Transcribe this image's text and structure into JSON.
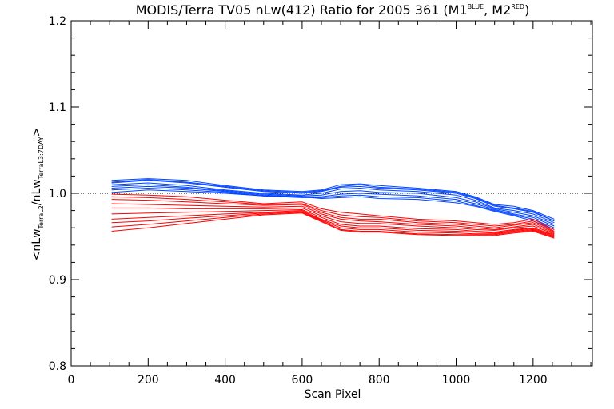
{
  "chart_data": {
    "type": "line",
    "title": {
      "main": "MODIS/Terra TV05 nLw(412) Ratio for 2005 361 (M1",
      "sup1": "BLUE",
      "mid": ", M2",
      "sup2": "RED",
      "end": ")"
    },
    "xlabel": "Scan Pixel",
    "ylabel": {
      "open": "<nLw",
      "sub1": "TerraL2",
      "slash": "/nLw",
      "sub2": "TerraL3:7DAY",
      "close": ">"
    },
    "xlim": [
      0,
      1354
    ],
    "ylim": [
      0.8,
      1.2
    ],
    "xticks": [
      0,
      200,
      400,
      600,
      800,
      1000,
      1200
    ],
    "yticks": [
      0.8,
      0.9,
      1.0,
      1.1,
      1.2
    ],
    "xtick_labels": [
      "0",
      "200",
      "400",
      "600",
      "800",
      "1000",
      "1200"
    ],
    "ytick_labels": [
      "0.8",
      "0.9",
      "1.0",
      "1.1",
      "1.2"
    ],
    "reference_line": 1.0,
    "colors": {
      "M1": "#0044ff",
      "M2": "#ff0000",
      "axis": "#000000"
    },
    "x": [
      105,
      200,
      300,
      400,
      500,
      600,
      650,
      700,
      750,
      800,
      900,
      1000,
      1050,
      1100,
      1150,
      1200,
      1255
    ],
    "series": [
      {
        "group": "M1",
        "values": [
          1.012,
          1.015,
          1.012,
          1.007,
          1.002,
          1.0,
          1.002,
          1.007,
          1.008,
          1.006,
          1.004,
          1.0,
          0.994,
          0.985,
          0.982,
          0.978,
          0.968
        ]
      },
      {
        "group": "M1",
        "values": [
          1.015,
          1.017,
          1.015,
          1.009,
          1.004,
          1.002,
          1.004,
          1.01,
          1.011,
          1.009,
          1.006,
          1.002,
          0.996,
          0.987,
          0.985,
          0.98,
          0.97
        ]
      },
      {
        "group": "M1",
        "values": [
          1.01,
          1.012,
          1.009,
          1.004,
          1.0,
          0.998,
          1.0,
          1.005,
          1.006,
          1.004,
          1.002,
          0.998,
          0.992,
          0.983,
          0.98,
          0.976,
          0.966
        ]
      },
      {
        "group": "M1",
        "values": [
          1.008,
          1.01,
          1.007,
          1.003,
          0.999,
          0.997,
          0.998,
          1.002,
          1.003,
          1.001,
          1.0,
          0.995,
          0.99,
          0.982,
          0.978,
          0.974,
          0.964
        ]
      },
      {
        "group": "M1",
        "values": [
          1.006,
          1.008,
          1.006,
          1.002,
          0.998,
          0.996,
          0.996,
          0.999,
          1.0,
          0.999,
          0.997,
          0.993,
          0.988,
          0.981,
          0.976,
          0.972,
          0.962
        ]
      },
      {
        "group": "M1",
        "values": [
          1.004,
          1.006,
          1.004,
          1.001,
          0.997,
          0.995,
          0.995,
          0.997,
          0.998,
          0.996,
          0.995,
          0.991,
          0.986,
          0.98,
          0.975,
          0.97,
          0.96
        ]
      },
      {
        "group": "M1",
        "values": [
          1.001,
          1.004,
          1.002,
          1.0,
          0.997,
          0.996,
          0.994,
          0.995,
          0.996,
          0.994,
          0.993,
          0.989,
          0.985,
          0.979,
          0.974,
          0.968,
          0.958
        ]
      },
      {
        "group": "M1",
        "values": [
          1.013,
          1.016,
          1.013,
          1.008,
          1.003,
          1.001,
          1.003,
          1.008,
          1.01,
          1.007,
          1.005,
          1.001,
          0.995,
          0.986,
          0.983,
          0.979,
          0.968
        ]
      },
      {
        "group": "M2",
        "values": [
          0.999,
          0.998,
          0.996,
          0.992,
          0.988,
          0.99,
          0.982,
          0.978,
          0.976,
          0.974,
          0.97,
          0.968,
          0.966,
          0.964,
          0.966,
          0.97,
          0.958
        ]
      },
      {
        "group": "M2",
        "values": [
          0.996,
          0.995,
          0.993,
          0.99,
          0.987,
          0.988,
          0.98,
          0.975,
          0.973,
          0.972,
          0.968,
          0.966,
          0.964,
          0.962,
          0.964,
          0.968,
          0.956
        ]
      },
      {
        "group": "M2",
        "values": [
          0.993,
          0.992,
          0.99,
          0.988,
          0.986,
          0.987,
          0.978,
          0.972,
          0.97,
          0.97,
          0.966,
          0.964,
          0.962,
          0.96,
          0.963,
          0.966,
          0.955
        ]
      },
      {
        "group": "M2",
        "values": [
          0.988,
          0.987,
          0.986,
          0.985,
          0.984,
          0.985,
          0.976,
          0.97,
          0.968,
          0.967,
          0.964,
          0.962,
          0.96,
          0.958,
          0.961,
          0.964,
          0.954
        ]
      },
      {
        "group": "M2",
        "values": [
          0.983,
          0.983,
          0.982,
          0.982,
          0.982,
          0.983,
          0.974,
          0.967,
          0.965,
          0.965,
          0.962,
          0.96,
          0.958,
          0.957,
          0.96,
          0.962,
          0.953
        ]
      },
      {
        "group": "M2",
        "values": [
          0.976,
          0.977,
          0.978,
          0.979,
          0.98,
          0.981,
          0.972,
          0.964,
          0.962,
          0.962,
          0.959,
          0.958,
          0.956,
          0.955,
          0.958,
          0.96,
          0.952
        ]
      },
      {
        "group": "M2",
        "values": [
          0.97,
          0.972,
          0.974,
          0.976,
          0.978,
          0.98,
          0.97,
          0.962,
          0.96,
          0.96,
          0.957,
          0.956,
          0.955,
          0.954,
          0.957,
          0.959,
          0.951
        ]
      },
      {
        "group": "M2",
        "values": [
          0.966,
          0.968,
          0.971,
          0.974,
          0.977,
          0.979,
          0.969,
          0.96,
          0.958,
          0.958,
          0.955,
          0.954,
          0.953,
          0.953,
          0.956,
          0.958,
          0.95
        ]
      },
      {
        "group": "M2",
        "values": [
          0.961,
          0.964,
          0.968,
          0.972,
          0.976,
          0.978,
          0.968,
          0.958,
          0.956,
          0.956,
          0.953,
          0.952,
          0.952,
          0.952,
          0.955,
          0.957,
          0.949
        ]
      },
      {
        "group": "M2",
        "values": [
          0.956,
          0.96,
          0.965,
          0.97,
          0.975,
          0.977,
          0.967,
          0.957,
          0.955,
          0.955,
          0.952,
          0.951,
          0.951,
          0.951,
          0.954,
          0.956,
          0.948
        ]
      }
    ]
  }
}
